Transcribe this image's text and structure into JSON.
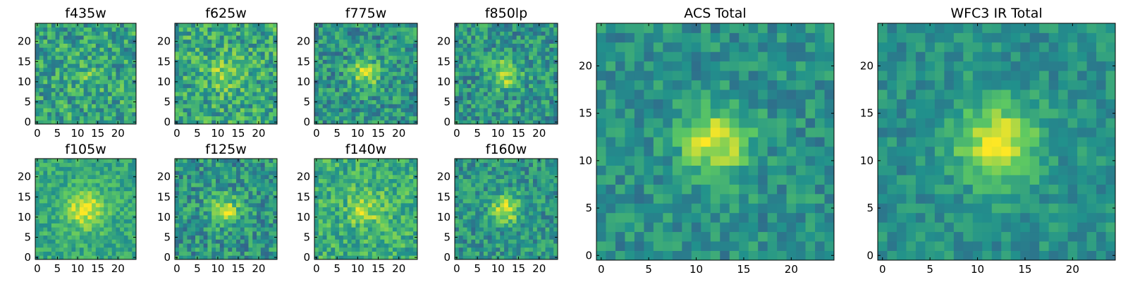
{
  "figure": {
    "colormap": [
      "#440154",
      "#3b528b",
      "#21918c",
      "#5ec962",
      "#fde725"
    ],
    "chart_data": [
      {
        "type": "heatmap",
        "title": "f435w",
        "grid": false,
        "size": 25,
        "xlim": [
          0,
          24
        ],
        "ylim": [
          0,
          24
        ],
        "xticks": [
          "0",
          "5",
          "10",
          "15",
          "20"
        ],
        "yticks": [
          "0",
          "5",
          "10",
          "15",
          "20"
        ],
        "signal": {
          "center": [
            12,
            12
          ],
          "amplitude": 0.1,
          "width": 3
        },
        "noise": 0.22,
        "base": 0.58,
        "seed": 11
      },
      {
        "type": "heatmap",
        "title": "f625w",
        "grid": false,
        "size": 25,
        "xlim": [
          0,
          24
        ],
        "ylim": [
          0,
          24
        ],
        "xticks": [
          "0",
          "5",
          "10",
          "15",
          "20"
        ],
        "yticks": [
          "0",
          "5",
          "10",
          "15",
          "20"
        ],
        "signal": {
          "center": [
            12,
            12
          ],
          "amplitude": 0.2,
          "width": 3
        },
        "noise": 0.22,
        "base": 0.6,
        "seed": 23
      },
      {
        "type": "heatmap",
        "title": "f775w",
        "grid": false,
        "size": 25,
        "xlim": [
          0,
          24
        ],
        "ylim": [
          0,
          24
        ],
        "xticks": [
          "0",
          "5",
          "10",
          "15",
          "20"
        ],
        "yticks": [
          "0",
          "5",
          "10",
          "15",
          "20"
        ],
        "signal": {
          "center": [
            12,
            12
          ],
          "amplitude": 0.35,
          "width": 2.5
        },
        "noise": 0.2,
        "base": 0.52,
        "seed": 37
      },
      {
        "type": "heatmap",
        "title": "f850lp",
        "grid": false,
        "size": 25,
        "xlim": [
          0,
          24
        ],
        "ylim": [
          0,
          24
        ],
        "xticks": [
          "0",
          "5",
          "10",
          "15",
          "20"
        ],
        "yticks": [
          "0",
          "5",
          "10",
          "15",
          "20"
        ],
        "signal": {
          "center": [
            12,
            12
          ],
          "amplitude": 0.35,
          "width": 2.5
        },
        "noise": 0.2,
        "base": 0.52,
        "seed": 41
      },
      {
        "type": "heatmap",
        "title": "f105w",
        "grid": false,
        "size": 25,
        "xlim": [
          0,
          24
        ],
        "ylim": [
          0,
          24
        ],
        "xticks": [
          "0",
          "5",
          "10",
          "15",
          "20"
        ],
        "yticks": [
          "0",
          "5",
          "10",
          "15",
          "20"
        ],
        "signal": {
          "center": [
            12,
            12
          ],
          "amplitude": 0.35,
          "width": 3.5
        },
        "noise": 0.14,
        "base": 0.6,
        "seed": 53
      },
      {
        "type": "heatmap",
        "title": "f125w",
        "grid": false,
        "size": 25,
        "xlim": [
          0,
          24
        ],
        "ylim": [
          0,
          24
        ],
        "xticks": [
          "0",
          "5",
          "10",
          "15",
          "20"
        ],
        "yticks": [
          "0",
          "5",
          "10",
          "15",
          "20"
        ],
        "signal": {
          "center": [
            12,
            12
          ],
          "amplitude": 0.35,
          "width": 2.5
        },
        "noise": 0.2,
        "base": 0.52,
        "seed": 67
      },
      {
        "type": "heatmap",
        "title": "f140w",
        "grid": false,
        "size": 25,
        "xlim": [
          0,
          24
        ],
        "ylim": [
          0,
          24
        ],
        "xticks": [
          "0",
          "5",
          "10",
          "15",
          "20"
        ],
        "yticks": [
          "0",
          "5",
          "10",
          "15",
          "20"
        ],
        "signal": {
          "center": [
            12,
            12
          ],
          "amplitude": 0.25,
          "width": 3
        },
        "noise": 0.18,
        "base": 0.62,
        "seed": 79
      },
      {
        "type": "heatmap",
        "title": "f160w",
        "grid": false,
        "size": 25,
        "xlim": [
          0,
          24
        ],
        "ylim": [
          0,
          24
        ],
        "xticks": [
          "0",
          "5",
          "10",
          "15",
          "20"
        ],
        "yticks": [
          "0",
          "5",
          "10",
          "15",
          "20"
        ],
        "signal": {
          "center": [
            12,
            12
          ],
          "amplitude": 0.4,
          "width": 2.5
        },
        "noise": 0.18,
        "base": 0.52,
        "seed": 83
      },
      {
        "type": "heatmap",
        "title": "ACS Total",
        "grid": false,
        "size": 25,
        "xlim": [
          0,
          24
        ],
        "ylim": [
          0,
          24
        ],
        "xticks": [
          "0",
          "5",
          "10",
          "15",
          "20"
        ],
        "yticks": [
          "0",
          "5",
          "10",
          "15",
          "20"
        ],
        "signal": {
          "center": [
            12,
            12
          ],
          "amplitude": 0.45,
          "width": 2.5
        },
        "noise": 0.14,
        "base": 0.5,
        "seed": 97
      },
      {
        "type": "heatmap",
        "title": "WFC3 IR Total",
        "grid": false,
        "size": 25,
        "xlim": [
          0,
          24
        ],
        "ylim": [
          0,
          24
        ],
        "xticks": [
          "0",
          "5",
          "10",
          "15",
          "20"
        ],
        "yticks": [
          "0",
          "5",
          "10",
          "15",
          "20"
        ],
        "signal": {
          "center": [
            12,
            12
          ],
          "amplitude": 0.45,
          "width": 3
        },
        "noise": 0.12,
        "base": 0.5,
        "seed": 101
      }
    ]
  }
}
